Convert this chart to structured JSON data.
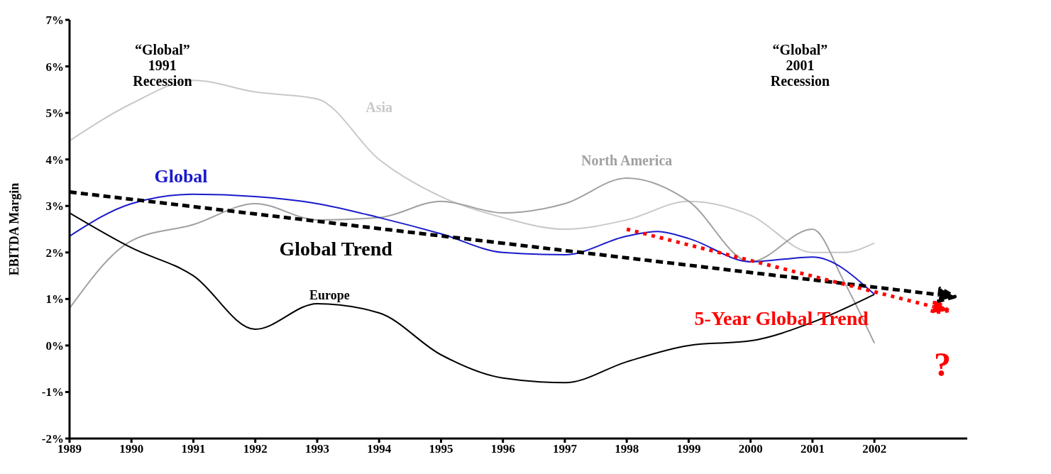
{
  "chart_data": {
    "type": "line",
    "ylabel": "EBITDA Margin",
    "xlim": [
      1989,
      2003.5
    ],
    "xticks": [
      1989,
      1990,
      1991,
      1992,
      1993,
      1994,
      1995,
      1996,
      1997,
      1998,
      1999,
      2000,
      2001,
      2002
    ],
    "ylim": [
      -2,
      7
    ],
    "yticks": [
      {
        "value": -2,
        "label": "-2%"
      },
      {
        "value": -1,
        "label": "-1%"
      },
      {
        "value": 0,
        "label": "0%"
      },
      {
        "value": 1,
        "label": "1%"
      },
      {
        "value": 2,
        "label": "2%"
      },
      {
        "value": 3,
        "label": "3%"
      },
      {
        "value": 4,
        "label": "4%"
      },
      {
        "value": 5,
        "label": "5%"
      },
      {
        "value": 6,
        "label": "6%"
      },
      {
        "value": 7,
        "label": "7%"
      }
    ],
    "marker": "none",
    "annotations": [
      "“Global”\n1991\nRecession",
      "“Global”\n2001\nRecession",
      "?",
      "Global Trend",
      "5-Year Global Trend"
    ],
    "series": [
      {
        "name": "Asia",
        "color": "#c8c8c8",
        "x": [
          1989,
          1990,
          1991,
          1992,
          1993,
          1994,
          1995,
          1996,
          1997,
          1998,
          1999,
          2000,
          2001,
          2001.5,
          2002
        ],
        "values": [
          4.4,
          5.2,
          5.7,
          5.45,
          5.3,
          4.0,
          3.2,
          2.75,
          2.5,
          2.7,
          3.1,
          2.8,
          2.0,
          2.0,
          2.2
        ]
      },
      {
        "name": "North America",
        "color": "#a0a0a0",
        "x": [
          1989,
          1990,
          1991,
          1992,
          1993,
          1994,
          1995,
          1996,
          1997,
          1998,
          1999,
          2000,
          2001,
          2001.5,
          2002
        ],
        "values": [
          0.8,
          2.25,
          2.6,
          3.05,
          2.7,
          2.75,
          3.1,
          2.85,
          3.05,
          3.6,
          3.1,
          1.8,
          2.5,
          1.4,
          0.05
        ]
      },
      {
        "name": "Global",
        "color": "#1a1acc",
        "x": [
          1989,
          1990,
          1991,
          1992,
          1993,
          1994,
          1995,
          1996,
          1997,
          1998,
          1998.5,
          1999,
          2000,
          2000.5,
          2001,
          2002
        ],
        "values": [
          2.35,
          3.05,
          3.25,
          3.2,
          3.05,
          2.75,
          2.4,
          2.0,
          1.95,
          2.35,
          2.45,
          2.3,
          1.8,
          1.85,
          1.9,
          1.1
        ]
      },
      {
        "name": "Europe",
        "color": "#000000",
        "x": [
          1989,
          1990,
          1991,
          1992,
          1993,
          1994,
          1995,
          1996,
          1997,
          1998,
          1999,
          2000,
          2001,
          2002
        ],
        "values": [
          2.85,
          2.1,
          1.5,
          0.35,
          0.9,
          0.7,
          -0.2,
          -0.7,
          -0.8,
          -0.35,
          0.0,
          0.1,
          0.5,
          1.1
        ]
      }
    ]
  }
}
